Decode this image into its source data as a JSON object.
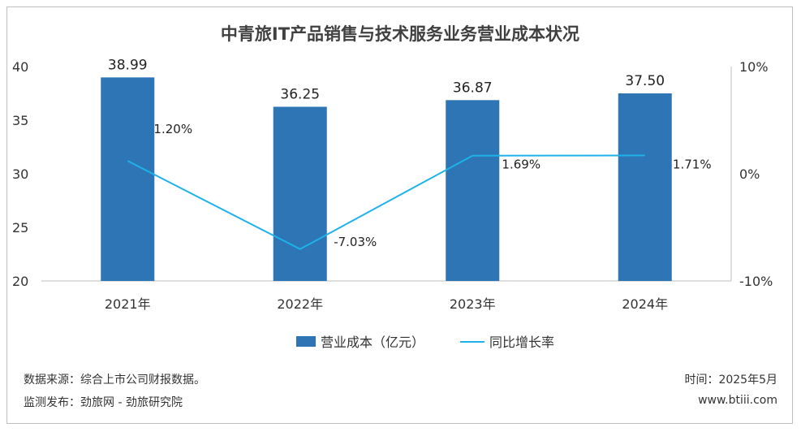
{
  "chart_data": {
    "type": "bar",
    "title": "中青旅IT产品销售与技术服务业务营业成本状况",
    "categories": [
      "2021年",
      "2022年",
      "2023年",
      "2024年"
    ],
    "series": [
      {
        "name": "营业成本（亿元）",
        "type": "bar",
        "axis": "left",
        "values": [
          38.99,
          36.25,
          36.87,
          37.5
        ],
        "labels": [
          "38.99",
          "36.25",
          "36.87",
          "37.50"
        ],
        "color": "#2e75b6"
      },
      {
        "name": "同比增长率",
        "type": "line",
        "axis": "right",
        "values": [
          1.2,
          -7.03,
          1.69,
          1.71
        ],
        "labels": [
          "1.20%",
          "-7.03%",
          "1.69%",
          "1.71%"
        ],
        "color": "#1fb2e8"
      }
    ],
    "left_axis": {
      "min": 20,
      "max": 40,
      "ticks": [
        "20",
        "25",
        "30",
        "35",
        "40"
      ]
    },
    "right_axis": {
      "min": -10,
      "max": 10,
      "ticks": [
        "-10%",
        "0%",
        "10%"
      ]
    },
    "legend_position": "bottom",
    "grid": false
  },
  "footer": {
    "source": "数据来源：综合上市公司财报数据。",
    "monitor": "监测发布：劲旅网 - 劲旅研究院",
    "time": "时间：2025年5月",
    "site": "www.btiii.com"
  }
}
